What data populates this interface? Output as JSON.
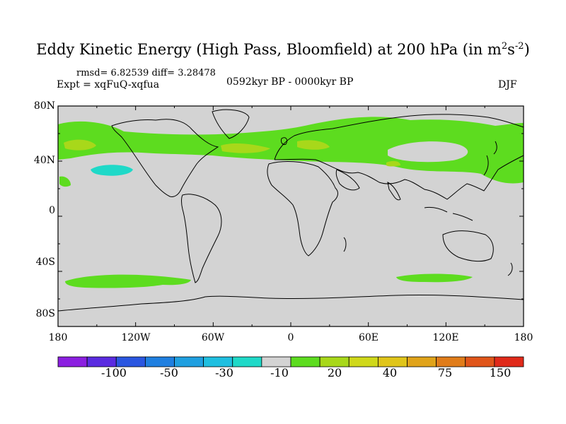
{
  "title": {
    "prefix": "Eddy Kinetic Energy (High Pass, Bloomfield) at 200 hPa (in m",
    "sup1": "2",
    "mid": "s",
    "sup2": "-2",
    "suffix": ")"
  },
  "stats": {
    "rmsd_diff": "rmsd= 6.82539 diff= 3.28478",
    "expt": "Expt = xqFuQ-xqfua",
    "period": "0592kyr BP - 0000kyr BP",
    "season": "DJF"
  },
  "map": {
    "background_color": "#d3d3d3",
    "y_ticks": [
      "80N",
      "40N",
      "0",
      "40S",
      "80S"
    ],
    "x_ticks": [
      "180",
      "120W",
      "60W",
      "0",
      "60E",
      "120E",
      "180"
    ],
    "fill_colors": {
      "cyan": "#1fd9c8",
      "green": "#5ddc1f",
      "yellow_green": "#a8d81a"
    }
  },
  "colorbar": {
    "colors": [
      "#8b1fe0",
      "#5a2be0",
      "#2a56e0",
      "#1f7fe0",
      "#1f9fe0",
      "#1fbfe0",
      "#1fd9c8",
      "#d3d3d3",
      "#5ddc1f",
      "#a8d81a",
      "#cfd81a",
      "#e0c51a",
      "#e0a31a",
      "#e07c1a",
      "#e0551a",
      "#e02a1a"
    ],
    "labels": [
      "-100",
      "-50",
      "-30",
      "-10",
      "20",
      "40",
      "75",
      "150"
    ]
  }
}
